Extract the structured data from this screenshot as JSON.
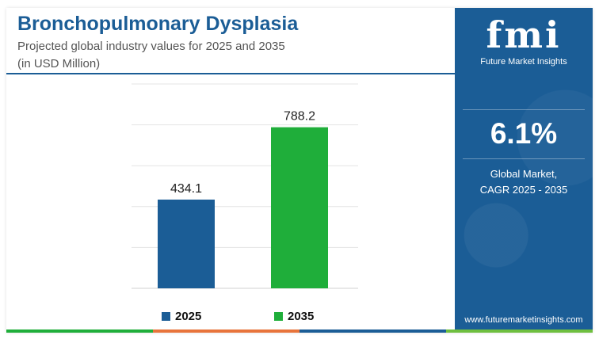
{
  "header": {
    "title": "Bronchopulmonary Dysplasia",
    "subtitle_line1": "Projected global industry values for 2025 and 2035",
    "subtitle_line2": "(in USD Million)"
  },
  "chart_data": {
    "type": "bar",
    "categories": [
      "2025",
      "2035"
    ],
    "values": [
      434.1,
      788.2
    ],
    "value_labels": [
      "434.1",
      "788.2"
    ],
    "colors": [
      "#1b5d96",
      "#1fae3a"
    ],
    "ylim": [
      0,
      1000
    ],
    "grid": true,
    "legend": "bottom",
    "title": "",
    "xlabel": "",
    "ylabel": ""
  },
  "sidebar": {
    "logo_mark": "fmi",
    "logo_text": "Future Market Insights",
    "cagr_value": "6.1%",
    "cagr_label_line1": "Global Market,",
    "cagr_label_line2": "CAGR 2025 - 2035",
    "url": "www.futuremarketinsights.com"
  },
  "colors": {
    "brand_blue": "#1b5d96",
    "green": "#1fae3a",
    "stripe": [
      "#1fae3a",
      "#e8743b",
      "#1b5d96",
      "#6fbf3f"
    ]
  }
}
